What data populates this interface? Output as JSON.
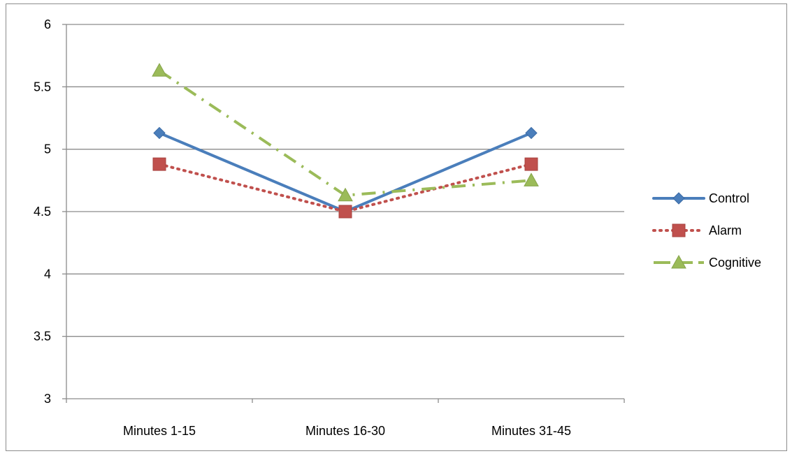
{
  "chart_data": {
    "type": "line",
    "title": "",
    "xlabel": "",
    "ylabel": "",
    "categories": [
      "Minutes 1-15",
      "Minutes 16-30",
      "Minutes 31-45"
    ],
    "ylim": [
      3,
      6
    ],
    "yticks": [
      3,
      3.5,
      4,
      4.5,
      5,
      5.5,
      6
    ],
    "ytick_labels": [
      "3",
      "3.5",
      "4",
      "4.5",
      "5",
      "5.5",
      "6"
    ],
    "grid": "horizontal",
    "legend_position": "right",
    "series": [
      {
        "name": "Control",
        "values": [
          5.13,
          4.5,
          5.13
        ],
        "color": "#4a7ebb",
        "marker": "diamond",
        "line_style": "solid"
      },
      {
        "name": "Alarm",
        "values": [
          4.88,
          4.5,
          4.88
        ],
        "color": "#c0504d",
        "marker": "square",
        "line_style": "dotted"
      },
      {
        "name": "Cognitive",
        "values": [
          5.63,
          4.63,
          4.75
        ],
        "color": "#9bbb59",
        "marker": "triangle",
        "line_style": "dash-dot"
      }
    ]
  }
}
